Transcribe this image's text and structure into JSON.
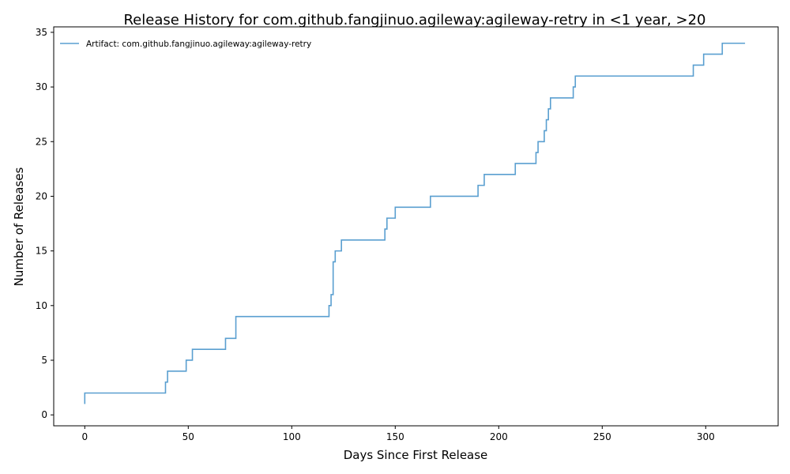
{
  "chart_data": {
    "type": "line",
    "title": "Release History for com.github.fangjinuo.agileway:agileway-retry in <1 year, >20",
    "xlabel": "Days Since First Release",
    "ylabel": "Number of Releases",
    "xlim": [
      -15,
      335
    ],
    "ylim": [
      -1,
      35.5
    ],
    "xticks": [
      0,
      50,
      100,
      150,
      200,
      250,
      300
    ],
    "yticks": [
      0,
      5,
      10,
      15,
      20,
      25,
      30,
      35
    ],
    "grid": false,
    "legend_position": "top-left",
    "step": "post",
    "series": [
      {
        "name": "Artifact: com.github.fangjinuo.agileway:agileway-retry",
        "color": "#5a9fd0",
        "x": [
          0,
          0,
          39,
          40,
          49,
          52,
          68,
          73,
          118,
          119,
          120,
          121,
          124,
          145,
          146,
          150,
          167,
          190,
          193,
          208,
          218,
          219,
          222,
          223,
          224,
          225,
          236,
          237,
          294,
          299,
          308,
          319
        ],
        "y": [
          1,
          2,
          3,
          4,
          5,
          6,
          7,
          9,
          10,
          11,
          14,
          15,
          16,
          17,
          18,
          19,
          20,
          21,
          22,
          23,
          24,
          25,
          26,
          27,
          28,
          29,
          30,
          31,
          32,
          33,
          34,
          34
        ]
      }
    ]
  }
}
